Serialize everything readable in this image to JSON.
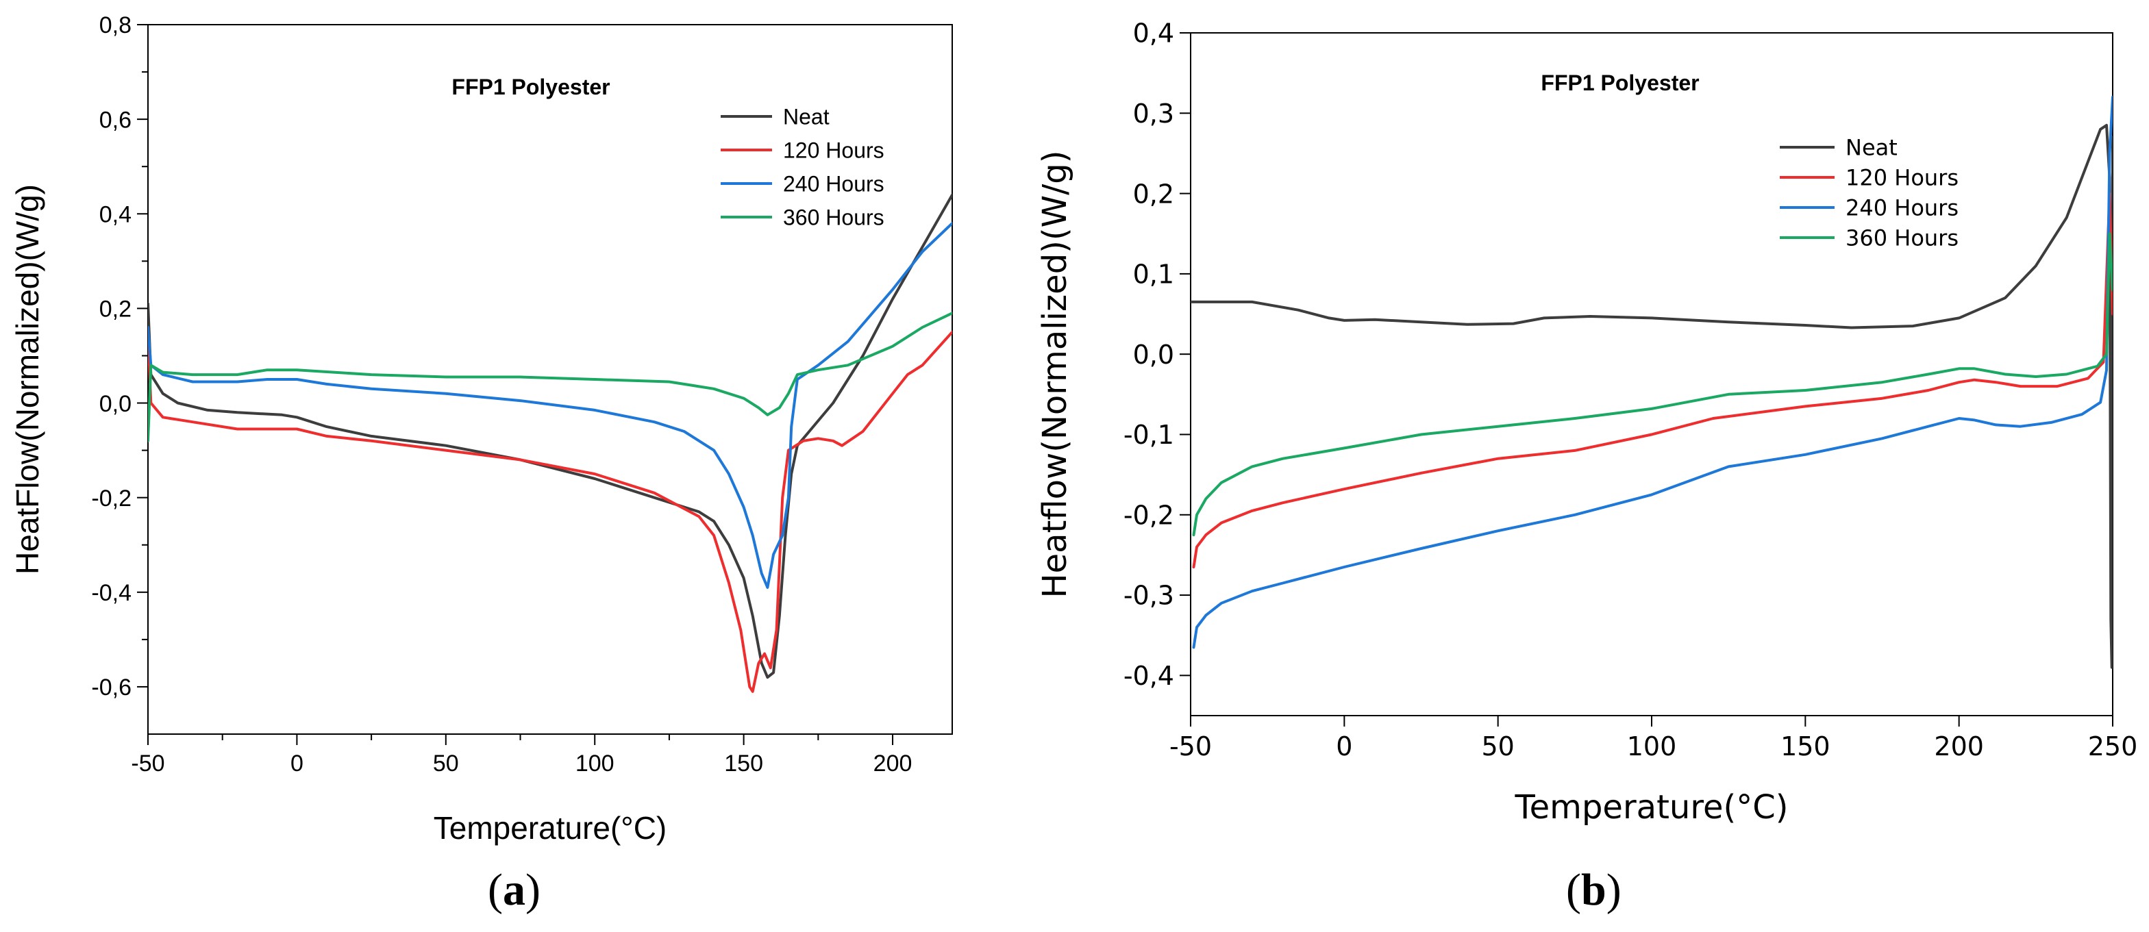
{
  "chart_data": [
    {
      "id": "a",
      "type": "line",
      "title": "FFP1 Polyester",
      "xlabel": "Temperature(°C)",
      "ylabel": "HeatFlow(Normalized)(W/g)",
      "xlim": [
        -50,
        220
      ],
      "ylim": [
        -0.7,
        0.8
      ],
      "xticks": [
        -50,
        0,
        50,
        100,
        150,
        200
      ],
      "xtick_labels": [
        "-50",
        "0",
        "50",
        "100",
        "150",
        "200"
      ],
      "yticks": [
        -0.6,
        -0.4,
        -0.2,
        0.0,
        0.2,
        0.4,
        0.6,
        0.8
      ],
      "ytick_labels": [
        "-0,6",
        "-0,4",
        "-0,2",
        "0,0",
        "0,2",
        "0,4",
        "0,6",
        "0,8"
      ],
      "legend_position": "top-right",
      "caption_letter": "a",
      "series": [
        {
          "name": "Neat",
          "color": "#3d3d3d",
          "points": [
            [
              -50,
              0.21
            ],
            [
              -49,
              0.06
            ],
            [
              -45,
              0.02
            ],
            [
              -40,
              0.0
            ],
            [
              -30,
              -0.015
            ],
            [
              -20,
              -0.02
            ],
            [
              -5,
              -0.025
            ],
            [
              0,
              -0.03
            ],
            [
              10,
              -0.05
            ],
            [
              25,
              -0.07
            ],
            [
              50,
              -0.09
            ],
            [
              75,
              -0.12
            ],
            [
              100,
              -0.16
            ],
            [
              120,
              -0.2
            ],
            [
              135,
              -0.23
            ],
            [
              140,
              -0.25
            ],
            [
              145,
              -0.3
            ],
            [
              150,
              -0.37
            ],
            [
              153,
              -0.45
            ],
            [
              156,
              -0.55
            ],
            [
              158,
              -0.58
            ],
            [
              160,
              -0.57
            ],
            [
              162,
              -0.45
            ],
            [
              164,
              -0.28
            ],
            [
              166,
              -0.15
            ],
            [
              168,
              -0.09
            ],
            [
              172,
              -0.06
            ],
            [
              180,
              0.0
            ],
            [
              190,
              0.1
            ],
            [
              200,
              0.22
            ],
            [
              210,
              0.33
            ],
            [
              220,
              0.44
            ]
          ]
        },
        {
          "name": "120 Hours",
          "color": "#ee2e2e",
          "points": [
            [
              -50,
              0.15
            ],
            [
              -49,
              0.0
            ],
            [
              -45,
              -0.03
            ],
            [
              -35,
              -0.04
            ],
            [
              -20,
              -0.055
            ],
            [
              0,
              -0.055
            ],
            [
              10,
              -0.07
            ],
            [
              25,
              -0.08
            ],
            [
              50,
              -0.1
            ],
            [
              75,
              -0.12
            ],
            [
              100,
              -0.15
            ],
            [
              120,
              -0.19
            ],
            [
              135,
              -0.24
            ],
            [
              140,
              -0.28
            ],
            [
              145,
              -0.38
            ],
            [
              149,
              -0.48
            ],
            [
              152,
              -0.6
            ],
            [
              153,
              -0.61
            ],
            [
              155,
              -0.55
            ],
            [
              157,
              -0.53
            ],
            [
              159,
              -0.56
            ],
            [
              161,
              -0.48
            ],
            [
              163,
              -0.2
            ],
            [
              165,
              -0.1
            ],
            [
              170,
              -0.08
            ],
            [
              175,
              -0.075
            ],
            [
              180,
              -0.08
            ],
            [
              183,
              -0.09
            ],
            [
              190,
              -0.06
            ],
            [
              200,
              0.02
            ],
            [
              205,
              0.06
            ],
            [
              210,
              0.08
            ],
            [
              220,
              0.15
            ]
          ]
        },
        {
          "name": "240 Hours",
          "color": "#1e78d8",
          "points": [
            [
              -50,
              0.16
            ],
            [
              -49,
              0.08
            ],
            [
              -45,
              0.06
            ],
            [
              -35,
              0.045
            ],
            [
              -20,
              0.045
            ],
            [
              -10,
              0.05
            ],
            [
              0,
              0.05
            ],
            [
              10,
              0.04
            ],
            [
              25,
              0.03
            ],
            [
              50,
              0.02
            ],
            [
              75,
              0.005
            ],
            [
              100,
              -0.015
            ],
            [
              120,
              -0.04
            ],
            [
              130,
              -0.06
            ],
            [
              140,
              -0.1
            ],
            [
              145,
              -0.15
            ],
            [
              150,
              -0.22
            ],
            [
              153,
              -0.28
            ],
            [
              156,
              -0.36
            ],
            [
              158,
              -0.39
            ],
            [
              160,
              -0.32
            ],
            [
              163,
              -0.28
            ],
            [
              165,
              -0.2
            ],
            [
              166,
              -0.05
            ],
            [
              168,
              0.05
            ],
            [
              175,
              0.08
            ],
            [
              185,
              0.13
            ],
            [
              200,
              0.24
            ],
            [
              210,
              0.32
            ],
            [
              220,
              0.38
            ]
          ]
        },
        {
          "name": "360 Hours",
          "color": "#1aa863",
          "points": [
            [
              -50,
              -0.08
            ],
            [
              -49,
              0.08
            ],
            [
              -45,
              0.065
            ],
            [
              -35,
              0.06
            ],
            [
              -20,
              0.06
            ],
            [
              -10,
              0.07
            ],
            [
              0,
              0.07
            ],
            [
              25,
              0.06
            ],
            [
              50,
              0.055
            ],
            [
              75,
              0.055
            ],
            [
              100,
              0.05
            ],
            [
              125,
              0.045
            ],
            [
              140,
              0.03
            ],
            [
              150,
              0.01
            ],
            [
              155,
              -0.01
            ],
            [
              158,
              -0.025
            ],
            [
              162,
              -0.01
            ],
            [
              165,
              0.02
            ],
            [
              168,
              0.06
            ],
            [
              175,
              0.07
            ],
            [
              185,
              0.08
            ],
            [
              200,
              0.12
            ],
            [
              210,
              0.16
            ],
            [
              220,
              0.19
            ]
          ]
        }
      ]
    },
    {
      "id": "b",
      "type": "line",
      "title": "FFP1 Polyester",
      "xlabel": "Temperature(°C)",
      "ylabel": "Heatflow(Normalized)(W/g)",
      "xlim": [
        -50,
        250
      ],
      "ylim": [
        -0.45,
        0.4
      ],
      "xticks": [
        -50,
        0,
        50,
        100,
        150,
        200,
        250
      ],
      "xtick_labels": [
        "-50",
        "0",
        "50",
        "100",
        "150",
        "200",
        "250"
      ],
      "yticks": [
        -0.4,
        -0.3,
        -0.2,
        -0.1,
        0.0,
        0.1,
        0.2,
        0.3,
        0.4
      ],
      "ytick_labels": [
        "-0,4",
        "-0,3",
        "-0,2",
        "-0,1",
        "0,0",
        "0,1",
        "0,2",
        "0,3",
        "0,4"
      ],
      "legend_position": "top-center",
      "caption_letter": "b",
      "series": [
        {
          "name": "Neat",
          "color": "#3d3d3d",
          "points": [
            [
              -50,
              0.065
            ],
            [
              -30,
              0.065
            ],
            [
              -15,
              0.055
            ],
            [
              -5,
              0.045
            ],
            [
              0,
              0.042
            ],
            [
              10,
              0.043
            ],
            [
              25,
              0.04
            ],
            [
              40,
              0.037
            ],
            [
              55,
              0.038
            ],
            [
              65,
              0.045
            ],
            [
              80,
              0.047
            ],
            [
              100,
              0.045
            ],
            [
              125,
              0.04
            ],
            [
              150,
              0.036
            ],
            [
              165,
              0.033
            ],
            [
              185,
              0.035
            ],
            [
              200,
              0.045
            ],
            [
              215,
              0.07
            ],
            [
              225,
              0.11
            ],
            [
              235,
              0.17
            ],
            [
              242,
              0.24
            ],
            [
              246,
              0.28
            ],
            [
              248,
              0.285
            ],
            [
              249,
              0.22
            ],
            [
              249.4,
              -0.33
            ],
            [
              249.7,
              -0.39
            ],
            [
              250,
              0.27
            ]
          ]
        },
        {
          "name": "120 Hours",
          "color": "#ee2e2e",
          "points": [
            [
              -49,
              -0.265
            ],
            [
              -48,
              -0.24
            ],
            [
              -45,
              -0.225
            ],
            [
              -40,
              -0.21
            ],
            [
              -30,
              -0.195
            ],
            [
              -20,
              -0.185
            ],
            [
              0,
              -0.168
            ],
            [
              25,
              -0.148
            ],
            [
              50,
              -0.13
            ],
            [
              75,
              -0.12
            ],
            [
              100,
              -0.1
            ],
            [
              120,
              -0.08
            ],
            [
              150,
              -0.065
            ],
            [
              175,
              -0.055
            ],
            [
              190,
              -0.045
            ],
            [
              200,
              -0.035
            ],
            [
              205,
              -0.032
            ],
            [
              212,
              -0.035
            ],
            [
              220,
              -0.04
            ],
            [
              232,
              -0.04
            ],
            [
              242,
              -0.03
            ],
            [
              247,
              -0.01
            ],
            [
              249,
              0.2
            ],
            [
              250,
              0.05
            ]
          ]
        },
        {
          "name": "240 Hours",
          "color": "#1e78d8",
          "points": [
            [
              -49,
              -0.365
            ],
            [
              -48,
              -0.34
            ],
            [
              -45,
              -0.325
            ],
            [
              -40,
              -0.31
            ],
            [
              -30,
              -0.295
            ],
            [
              -20,
              -0.285
            ],
            [
              0,
              -0.265
            ],
            [
              25,
              -0.242
            ],
            [
              50,
              -0.22
            ],
            [
              75,
              -0.2
            ],
            [
              100,
              -0.175
            ],
            [
              125,
              -0.14
            ],
            [
              150,
              -0.125
            ],
            [
              175,
              -0.105
            ],
            [
              190,
              -0.09
            ],
            [
              200,
              -0.08
            ],
            [
              205,
              -0.082
            ],
            [
              212,
              -0.088
            ],
            [
              220,
              -0.09
            ],
            [
              230,
              -0.085
            ],
            [
              240,
              -0.075
            ],
            [
              246,
              -0.06
            ],
            [
              248,
              -0.02
            ],
            [
              249,
              0.25
            ],
            [
              250,
              0.32
            ]
          ]
        },
        {
          "name": "360 Hours",
          "color": "#1aa863",
          "points": [
            [
              -49,
              -0.225
            ],
            [
              -48,
              -0.2
            ],
            [
              -45,
              -0.18
            ],
            [
              -40,
              -0.16
            ],
            [
              -30,
              -0.14
            ],
            [
              -20,
              -0.13
            ],
            [
              0,
              -0.117
            ],
            [
              25,
              -0.1
            ],
            [
              50,
              -0.09
            ],
            [
              75,
              -0.08
            ],
            [
              100,
              -0.068
            ],
            [
              125,
              -0.05
            ],
            [
              150,
              -0.045
            ],
            [
              175,
              -0.035
            ],
            [
              190,
              -0.025
            ],
            [
              200,
              -0.018
            ],
            [
              205,
              -0.018
            ],
            [
              215,
              -0.025
            ],
            [
              225,
              -0.028
            ],
            [
              235,
              -0.025
            ],
            [
              245,
              -0.015
            ],
            [
              248,
              0.0
            ],
            [
              249,
              0.15
            ],
            [
              250,
              0.08
            ]
          ]
        }
      ]
    }
  ]
}
